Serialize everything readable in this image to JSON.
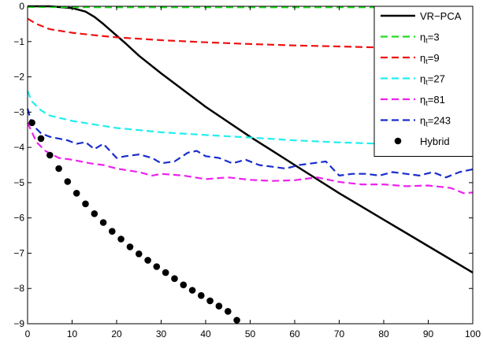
{
  "chart_data": {
    "type": "line",
    "title": "",
    "xlabel": "",
    "ylabel": "",
    "xlim": [
      0,
      100
    ],
    "ylim": [
      -9,
      0
    ],
    "xticks": [
      "0",
      "10",
      "20",
      "30",
      "40",
      "50",
      "60",
      "70",
      "80",
      "90",
      "100"
    ],
    "yticks": [
      "0",
      "−1",
      "−2",
      "−3",
      "−4",
      "−5",
      "−6",
      "−7",
      "−8",
      "−9"
    ],
    "grid": false,
    "legend_position": "top-right",
    "series": [
      {
        "name": "VR−PCA",
        "label_main": "VR−PCA",
        "label_sub": "",
        "label_tail": "",
        "color": "#000000",
        "style": "solid",
        "x": [
          0,
          5,
          10,
          13,
          15,
          17,
          19,
          22,
          25,
          30,
          40,
          50,
          55,
          60,
          70,
          80,
          90,
          100
        ],
        "y": [
          0,
          0,
          -0.05,
          -0.15,
          -0.3,
          -0.5,
          -0.72,
          -1.05,
          -1.4,
          -1.9,
          -2.85,
          -3.7,
          -4.1,
          -4.5,
          -5.3,
          -6.05,
          -6.8,
          -7.55
        ]
      },
      {
        "name": "ηt=3",
        "label_main": "η",
        "label_sub": "t",
        "label_tail": "=3",
        "color": "#22dd22",
        "style": "dashed",
        "x": [
          0,
          20,
          40,
          60,
          80,
          100
        ],
        "y": [
          -0.02,
          -0.03,
          -0.03,
          -0.03,
          -0.03,
          -0.03
        ]
      },
      {
        "name": "ηt=9",
        "label_main": "η",
        "label_sub": "t",
        "label_tail": "=9",
        "color": "#ee1111",
        "style": "dashed",
        "x": [
          0,
          2,
          5,
          10,
          15,
          20,
          30,
          40,
          50,
          60,
          70,
          80,
          90,
          100
        ],
        "y": [
          -0.35,
          -0.5,
          -0.65,
          -0.75,
          -0.82,
          -0.88,
          -0.96,
          -1.02,
          -1.07,
          -1.11,
          -1.14,
          -1.17,
          -1.19,
          -1.21
        ]
      },
      {
        "name": "ηt=27",
        "label_main": "η",
        "label_sub": "t",
        "label_tail": "=27",
        "color": "#22eeee",
        "style": "dashed",
        "x": [
          0,
          1,
          3,
          5,
          10,
          15,
          20,
          30,
          40,
          50,
          60,
          70,
          80,
          90,
          100
        ],
        "y": [
          -2.4,
          -2.7,
          -2.95,
          -3.1,
          -3.25,
          -3.35,
          -3.45,
          -3.57,
          -3.65,
          -3.72,
          -3.8,
          -3.86,
          -3.9,
          -3.93,
          -3.96
        ]
      },
      {
        "name": "ηt=81",
        "label_main": "η",
        "label_sub": "t",
        "label_tail": "=81",
        "color": "#ee22ee",
        "style": "dashed",
        "x": [
          0,
          2,
          4,
          7,
          10,
          14,
          17,
          20,
          25,
          28,
          30,
          35,
          40,
          45,
          50,
          55,
          60,
          65,
          70,
          75,
          80,
          85,
          90,
          95,
          98,
          100
        ],
        "y": [
          -3.3,
          -3.85,
          -4.1,
          -4.3,
          -4.35,
          -4.45,
          -4.5,
          -4.6,
          -4.7,
          -4.8,
          -4.75,
          -4.8,
          -4.9,
          -4.85,
          -4.92,
          -4.95,
          -4.93,
          -4.85,
          -4.98,
          -5.05,
          -5.05,
          -5.1,
          -5.08,
          -5.15,
          -5.3,
          -5.28
        ]
      },
      {
        "name": "ηt=243",
        "label_main": "η",
        "label_sub": "t",
        "label_tail": "=243",
        "color": "#1a2dcc",
        "style": "dashed",
        "x": [
          0,
          1,
          3,
          5,
          7,
          9,
          11,
          13,
          15,
          17,
          20,
          22,
          25,
          28,
          30,
          33,
          36,
          38,
          40,
          43,
          46,
          49,
          52,
          55,
          58,
          61,
          64,
          67,
          70,
          73,
          76,
          79,
          82,
          85,
          88,
          91,
          94,
          97,
          100
        ],
        "y": [
          -2.9,
          -3.35,
          -3.6,
          -3.7,
          -3.75,
          -3.8,
          -3.9,
          -3.85,
          -4.05,
          -3.9,
          -4.3,
          -4.25,
          -4.2,
          -4.3,
          -4.45,
          -4.4,
          -4.15,
          -4.1,
          -4.25,
          -4.3,
          -4.45,
          -4.35,
          -4.5,
          -4.55,
          -4.6,
          -4.5,
          -4.45,
          -4.4,
          -4.8,
          -4.75,
          -4.75,
          -4.8,
          -4.7,
          -4.75,
          -4.8,
          -4.7,
          -4.85,
          -4.7,
          -4.62
        ]
      },
      {
        "name": "Hybrid",
        "label_main": "Hybrid",
        "label_sub": "",
        "label_tail": "",
        "color": "#000000",
        "style": "markers",
        "x": [
          1,
          3,
          5,
          7,
          9,
          11,
          13,
          15,
          17,
          19,
          21,
          23,
          25,
          27,
          29,
          31,
          33,
          35,
          37,
          39,
          41,
          43,
          45,
          47
        ],
        "y": [
          -3.3,
          -3.75,
          -4.22,
          -4.6,
          -4.97,
          -5.3,
          -5.6,
          -5.88,
          -6.13,
          -6.38,
          -6.6,
          -6.82,
          -7.02,
          -7.2,
          -7.38,
          -7.55,
          -7.72,
          -7.9,
          -8.05,
          -8.2,
          -8.35,
          -8.5,
          -8.65,
          -8.9
        ]
      }
    ]
  }
}
